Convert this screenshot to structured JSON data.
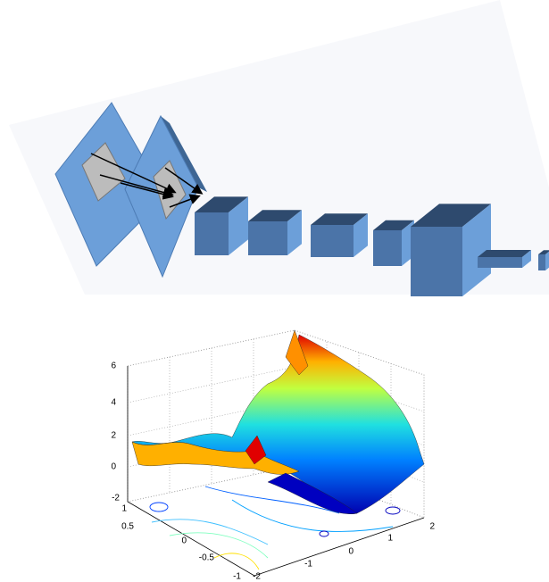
{
  "plot": {
    "z_ticks": [
      6,
      4,
      2,
      0,
      -2
    ],
    "y_ticks": [
      1,
      0.5,
      0,
      -0.5,
      -1
    ],
    "x_ticks": [
      -2,
      -1,
      0,
      1,
      2
    ]
  }
}
